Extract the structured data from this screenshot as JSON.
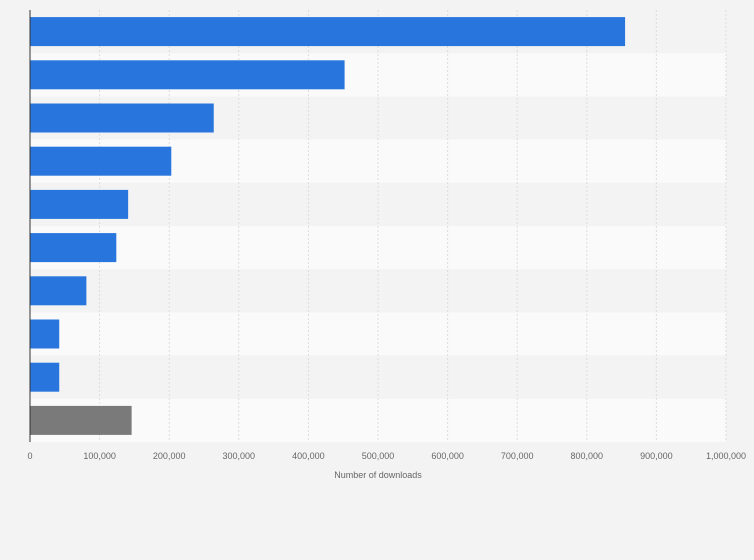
{
  "chart_data": {
    "type": "bar",
    "orientation": "horizontal",
    "title": "",
    "xlabel": "Number of downloads",
    "ylabel": "",
    "xlim": [
      0,
      1000000
    ],
    "grid": true,
    "categories": [
      "",
      "",
      "",
      "",
      "",
      "",
      "",
      "",
      "",
      ""
    ],
    "values": [
      855000,
      452000,
      264000,
      203000,
      141000,
      124000,
      81000,
      42000,
      42000,
      146000
    ],
    "highlight_last": true,
    "tick_labels": [
      "0",
      "100,000",
      "200,000",
      "300,000",
      "400,000",
      "500,000",
      "600,000",
      "700,000",
      "800,000",
      "900,000",
      "1,000,000"
    ],
    "tick_values": [
      0,
      100000,
      200000,
      300000,
      400000,
      500000,
      600000,
      700000,
      800000,
      900000,
      1000000
    ]
  },
  "colors": {
    "bar": "#2876dd",
    "bar_other": "#7a7a7a",
    "background": "#f3f3f3",
    "band_light": "#fafafa",
    "band_dark": "#f3f3f3",
    "grid": "#dddddd",
    "axis": "#333333"
  }
}
